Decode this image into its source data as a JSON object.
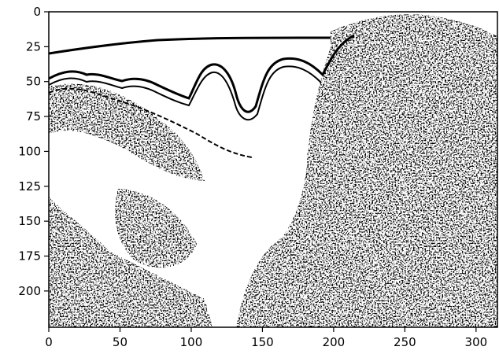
{
  "chart_data": {
    "type": "heatmap",
    "colormap": "binary",
    "colors": {
      "foreground": "#000000",
      "background": "#ffffff"
    },
    "title": "",
    "xlabel": "",
    "ylabel": "",
    "xlim": [
      0,
      315
    ],
    "ylim": [
      226,
      0
    ],
    "xticks": [
      0,
      50,
      100,
      150,
      200,
      250,
      300
    ],
    "yticks": [
      0,
      25,
      50,
      75,
      100,
      125,
      150,
      175,
      200
    ],
    "xtick_labels": [
      "0",
      "50",
      "100",
      "150",
      "200",
      "250",
      "300"
    ],
    "ytick_labels": [
      "0",
      "25",
      "50",
      "75",
      "100",
      "125",
      "150",
      "175",
      "200"
    ],
    "grid": false,
    "image_description": "binarized edge map of a textured scene: a thin curve near the top from (0,30) to (195,20), dark wavy band along y≈45-60, dense dark speckled regions at lower left and right side"
  }
}
